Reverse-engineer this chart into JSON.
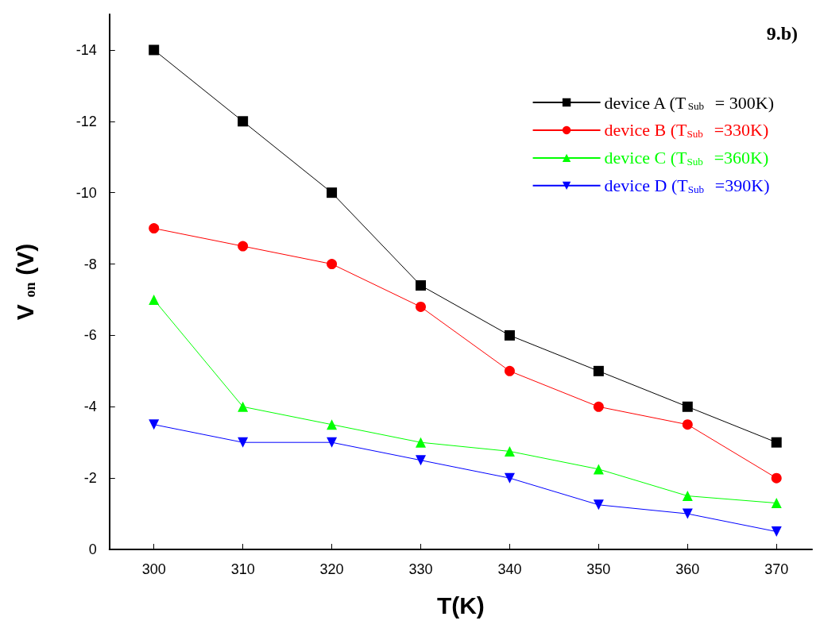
{
  "chart_data": {
    "type": "line",
    "xlabel": "T(K)",
    "ylabel": "V$_{on}$(V)",
    "annotations": [
      "9.b)"
    ],
    "x": [
      300,
      310,
      320,
      330,
      340,
      350,
      360,
      370
    ],
    "xlim": [
      295,
      374
    ],
    "xticks": [
      300,
      310,
      320,
      330,
      340,
      350,
      360,
      370
    ],
    "ylim": [
      0,
      -15
    ],
    "yticks": [
      0,
      -2,
      -4,
      -6,
      -8,
      -10,
      -12,
      -14
    ],
    "grid": false,
    "legend": "top right",
    "series": [
      {
        "name": "device A (T$_{Sub}$= 300K)",
        "color": "#000000",
        "marker": "square",
        "values": [
          -14,
          -12,
          -10,
          -7.4,
          -6,
          -5,
          -4,
          -3
        ]
      },
      {
        "name": "device B (T$_{Sub}$=330K)",
        "color": "#ff0000",
        "marker": "circle",
        "values": [
          -9,
          -8.5,
          -8,
          -6.8,
          -5,
          -4,
          -3.5,
          -2
        ]
      },
      {
        "name": "device C (T$_{Sub}$=360K)",
        "color": "#00ff00",
        "marker": "triangle",
        "values": [
          -7,
          -4,
          -3.5,
          -3,
          -2.75,
          -2.25,
          -1.5,
          -1.3
        ]
      },
      {
        "name": "device D (T$_{Sub}$=390K)",
        "color": "#0000ff",
        "marker": "triangle-down",
        "values": [
          -3.5,
          -3,
          -3,
          -2.5,
          -2,
          -1.25,
          -1,
          -0.5
        ]
      }
    ]
  }
}
